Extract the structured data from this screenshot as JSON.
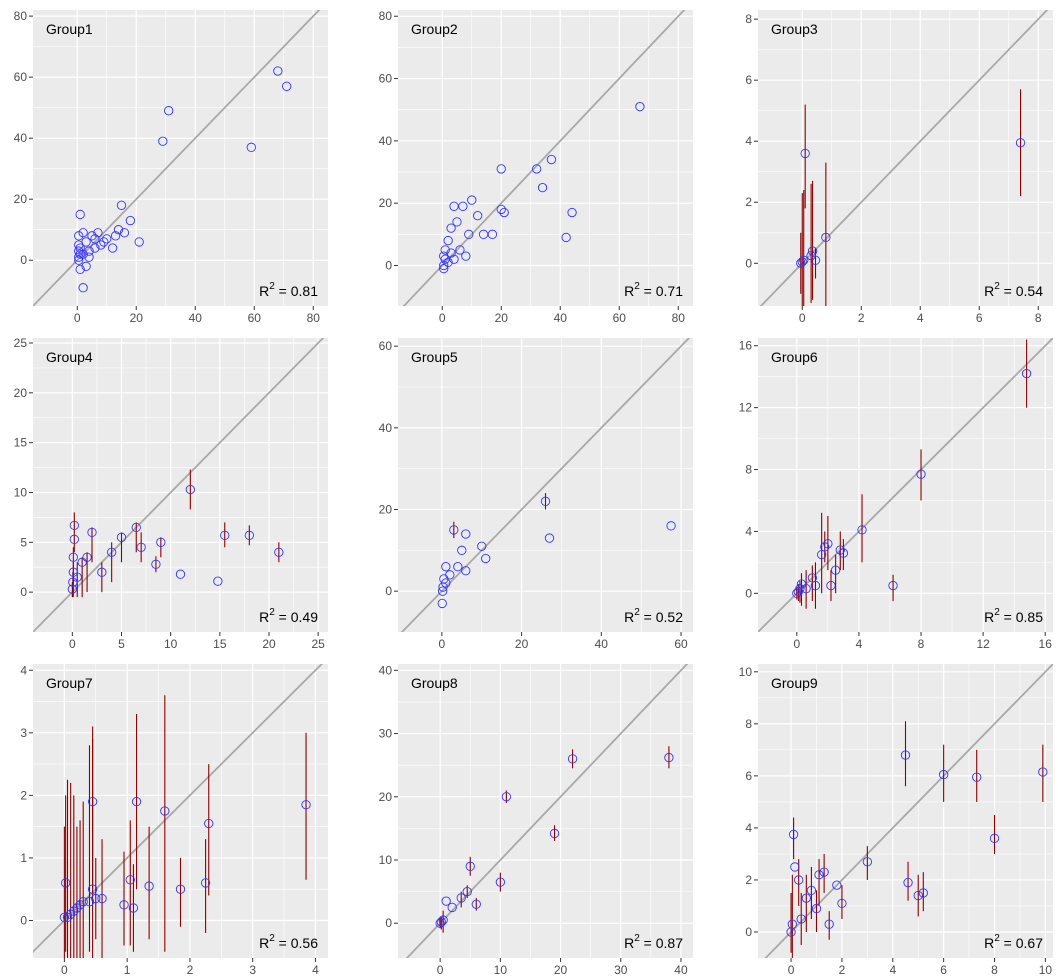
{
  "colors": {
    "panel_bg": "#ebebeb",
    "grid": "#ffffff",
    "diagonal": "#a8a8a8",
    "errorbar": "#8b0000",
    "point": "#3333ff",
    "tick_text": "#4d4d4d"
  },
  "chart_data": [
    {
      "type": "scatter",
      "title": "Group1",
      "r2_label": "= 0.81",
      "xlim": [
        -15,
        85
      ],
      "ylim": [
        -15,
        82
      ],
      "xticks": [
        0,
        20,
        40,
        60,
        80
      ],
      "yticks": [
        0,
        20,
        40,
        60,
        80
      ],
      "points": [
        {
          "x": 68,
          "y": 62
        },
        {
          "x": 71,
          "y": 57
        },
        {
          "x": 59,
          "y": 37
        },
        {
          "x": 31,
          "y": 49
        },
        {
          "x": 29,
          "y": 39
        },
        {
          "x": 21,
          "y": 6
        },
        {
          "x": 18,
          "y": 13
        },
        {
          "x": 15,
          "y": 18
        },
        {
          "x": 16,
          "y": 9
        },
        {
          "x": 14,
          "y": 10
        },
        {
          "x": 13,
          "y": 8
        },
        {
          "x": 12,
          "y": 4
        },
        {
          "x": 10,
          "y": 7
        },
        {
          "x": 9,
          "y": 6
        },
        {
          "x": 8,
          "y": 5
        },
        {
          "x": 7,
          "y": 9
        },
        {
          "x": 6,
          "y": 4
        },
        {
          "x": 5,
          "y": 8
        },
        {
          "x": 4,
          "y": 3
        },
        {
          "x": 3,
          "y": 6
        },
        {
          "x": 2,
          "y": 2
        },
        {
          "x": 1,
          "y": 15
        },
        {
          "x": 1,
          "y": -3
        },
        {
          "x": 2,
          "y": -9
        },
        {
          "x": 0.5,
          "y": 8
        },
        {
          "x": 0.5,
          "y": 5
        },
        {
          "x": 0.5,
          "y": 3
        },
        {
          "x": 0.5,
          "y": 1
        },
        {
          "x": 0.5,
          "y": 0
        },
        {
          "x": 3,
          "y": -2
        },
        {
          "x": 4,
          "y": 1
        },
        {
          "x": 6,
          "y": 7
        },
        {
          "x": 2,
          "y": 9
        },
        {
          "x": 1,
          "y": 4
        },
        {
          "x": 1,
          "y": 2
        }
      ]
    },
    {
      "type": "scatter",
      "title": "Group2",
      "r2_label": "= 0.71",
      "xlim": [
        -15,
        85
      ],
      "ylim": [
        -13,
        82
      ],
      "xticks": [
        0,
        20,
        40,
        60,
        80
      ],
      "yticks": [
        0,
        20,
        40,
        60,
        80
      ],
      "points": [
        {
          "x": 67,
          "y": 51
        },
        {
          "x": 37,
          "y": 34
        },
        {
          "x": 32,
          "y": 31
        },
        {
          "x": 34,
          "y": 25
        },
        {
          "x": 44,
          "y": 17
        },
        {
          "x": 42,
          "y": 9
        },
        {
          "x": 20,
          "y": 31
        },
        {
          "x": 20,
          "y": 18
        },
        {
          "x": 21,
          "y": 17
        },
        {
          "x": 17,
          "y": 10
        },
        {
          "x": 14,
          "y": 10
        },
        {
          "x": 12,
          "y": 16
        },
        {
          "x": 10,
          "y": 21
        },
        {
          "x": 9,
          "y": 10
        },
        {
          "x": 7,
          "y": 19
        },
        {
          "x": 4,
          "y": 19
        },
        {
          "x": 5,
          "y": 14
        },
        {
          "x": 3,
          "y": 12
        },
        {
          "x": 2,
          "y": 8
        },
        {
          "x": 6,
          "y": 5
        },
        {
          "x": 8,
          "y": 3
        },
        {
          "x": 1,
          "y": 5
        },
        {
          "x": 1,
          "y": 2
        },
        {
          "x": 0.5,
          "y": 0
        },
        {
          "x": 0.5,
          "y": 3
        },
        {
          "x": 2,
          "y": 1
        },
        {
          "x": 4,
          "y": 2
        },
        {
          "x": 3,
          "y": 4
        },
        {
          "x": 0.5,
          "y": -1
        }
      ]
    },
    {
      "type": "scatter",
      "title": "Group3",
      "r2_label": "= 0.54",
      "xlim": [
        -1.5,
        8.5
      ],
      "ylim": [
        -1.4,
        8.3
      ],
      "xticks": [
        0,
        2,
        4,
        6,
        8
      ],
      "yticks": [
        0,
        2,
        4,
        6,
        8
      ],
      "points": [
        {
          "x": 7.4,
          "y": 3.95,
          "lo": 2.2,
          "hi": 5.7
        },
        {
          "x": 0.1,
          "y": 3.6,
          "lo": 1.8,
          "hi": 5.2
        },
        {
          "x": 0.8,
          "y": 0.85,
          "lo": -1.4,
          "hi": 3.3
        },
        {
          "x": 0.35,
          "y": 0.4,
          "lo": -1.2,
          "hi": 2.7
        },
        {
          "x": 0.3,
          "y": 0.25,
          "lo": -1.3,
          "hi": 2.6
        },
        {
          "x": 0.45,
          "y": 0.1,
          "lo": -0.5,
          "hi": 0.5
        },
        {
          "x": 0.05,
          "y": 0.1,
          "lo": -1.4,
          "hi": 2.4
        },
        {
          "x": 0.0,
          "y": 0.05,
          "lo": -1.4,
          "hi": 2.3
        },
        {
          "x": -0.05,
          "y": 0.0,
          "lo": -1.0,
          "hi": 1.0
        }
      ]
    },
    {
      "type": "scatter",
      "title": "Group4",
      "r2_label": "= 0.49",
      "xlim": [
        -4,
        26
      ],
      "ylim": [
        -4,
        25.5
      ],
      "xticks": [
        0,
        5,
        10,
        15,
        20,
        25
      ],
      "yticks": [
        0,
        5,
        10,
        15,
        20,
        25
      ],
      "points": [
        {
          "x": 12,
          "y": 10.3,
          "lo": 8.3,
          "hi": 12.3
        },
        {
          "x": 21,
          "y": 4,
          "lo": 3,
          "hi": 5
        },
        {
          "x": 18,
          "y": 5.7,
          "lo": 4.7,
          "hi": 6.7
        },
        {
          "x": 15.5,
          "y": 5.7,
          "lo": 4.5,
          "hi": 7
        },
        {
          "x": 14.8,
          "y": 1.1
        },
        {
          "x": 11,
          "y": 1.8
        },
        {
          "x": 9,
          "y": 5,
          "lo": 3.5,
          "hi": 5.5
        },
        {
          "x": 8.5,
          "y": 2.8,
          "lo": 2,
          "hi": 3.6
        },
        {
          "x": 7,
          "y": 4.5,
          "lo": 3,
          "hi": 6
        },
        {
          "x": 6.5,
          "y": 6.5,
          "lo": 4,
          "hi": 7
        },
        {
          "x": 5,
          "y": 5.5,
          "lo": 3,
          "hi": 6
        },
        {
          "x": 4,
          "y": 4,
          "lo": 1,
          "hi": 5
        },
        {
          "x": 3,
          "y": 2,
          "lo": 0,
          "hi": 3
        },
        {
          "x": 2,
          "y": 6,
          "lo": 3,
          "hi": 6.5
        },
        {
          "x": 1.5,
          "y": 3.5,
          "lo": 0,
          "hi": 4
        },
        {
          "x": 1,
          "y": 3,
          "lo": -0.5,
          "hi": 3.5
        },
        {
          "x": 0.5,
          "y": 1.5,
          "lo": -0.5,
          "hi": 3
        },
        {
          "x": 0.2,
          "y": 6.7,
          "lo": 4,
          "hi": 8
        },
        {
          "x": 0.2,
          "y": 5.3
        },
        {
          "x": 0.1,
          "y": 3.5,
          "lo": 0.5,
          "hi": 4.5
        },
        {
          "x": 0.1,
          "y": 2,
          "lo": -0.5,
          "hi": 3
        },
        {
          "x": 0.05,
          "y": 1,
          "lo": -0.5,
          "hi": 2
        },
        {
          "x": 0,
          "y": 0.3,
          "lo": -0.5,
          "hi": 1
        }
      ]
    },
    {
      "type": "scatter",
      "title": "Group5",
      "r2_label": "= 0.52",
      "xlim": [
        -11,
        63
      ],
      "ylim": [
        -10,
        62
      ],
      "xticks": [
        0,
        20,
        40,
        60
      ],
      "yticks": [
        0,
        20,
        40,
        60
      ],
      "points": [
        {
          "x": 26,
          "y": 22,
          "lo": 20,
          "hi": 24
        },
        {
          "x": 27,
          "y": 13
        },
        {
          "x": 57.5,
          "y": 16
        },
        {
          "x": 10,
          "y": 11
        },
        {
          "x": 11,
          "y": 8
        },
        {
          "x": 3,
          "y": 15,
          "lo": 13,
          "hi": 17
        },
        {
          "x": 6,
          "y": 14
        },
        {
          "x": 5,
          "y": 10
        },
        {
          "x": 4,
          "y": 6
        },
        {
          "x": 6,
          "y": 5
        },
        {
          "x": 2,
          "y": 4
        },
        {
          "x": 1,
          "y": 6
        },
        {
          "x": 0.5,
          "y": 3
        },
        {
          "x": 0.2,
          "y": 0
        },
        {
          "x": 0.1,
          "y": -3
        },
        {
          "x": 0.3,
          "y": 1
        },
        {
          "x": 1,
          "y": 2
        }
      ]
    },
    {
      "type": "scatter",
      "title": "Group6",
      "r2_label": "= 0.85",
      "xlim": [
        -2.5,
        16.5
      ],
      "ylim": [
        -2.5,
        16.5
      ],
      "xticks": [
        0,
        4,
        8,
        12,
        16
      ],
      "yticks": [
        0,
        4,
        8,
        12,
        16
      ],
      "points": [
        {
          "x": 14.8,
          "y": 14.2,
          "lo": 12,
          "hi": 16.4
        },
        {
          "x": 8,
          "y": 7.7,
          "lo": 6,
          "hi": 9.3
        },
        {
          "x": 4.2,
          "y": 4.1,
          "lo": 2,
          "hi": 6.4
        },
        {
          "x": 6.2,
          "y": 0.5,
          "lo": -0.5,
          "hi": 1.2
        },
        {
          "x": 3,
          "y": 2.6,
          "lo": 1.5,
          "hi": 3.5
        },
        {
          "x": 2.8,
          "y": 2.8,
          "lo": 1.5,
          "hi": 4
        },
        {
          "x": 2.5,
          "y": 1.5,
          "lo": 0,
          "hi": 2.5
        },
        {
          "x": 2.2,
          "y": 0.5,
          "lo": -0.5,
          "hi": 1.5
        },
        {
          "x": 2,
          "y": 3.2,
          "lo": 1.5,
          "hi": 5
        },
        {
          "x": 1.8,
          "y": 3,
          "lo": 2,
          "hi": 4
        },
        {
          "x": 1.6,
          "y": 2.5,
          "lo": 0,
          "hi": 5.2
        },
        {
          "x": 1.2,
          "y": 0.5,
          "lo": -1,
          "hi": 2
        },
        {
          "x": 1,
          "y": 1,
          "lo": -0.5,
          "hi": 1.8
        },
        {
          "x": 0.6,
          "y": 0.3,
          "lo": -1,
          "hi": 1.5
        },
        {
          "x": 0.3,
          "y": 0.6,
          "lo": -0.8,
          "hi": 1.3
        },
        {
          "x": 0.2,
          "y": 0.3,
          "lo": -0.6,
          "hi": 0.8
        },
        {
          "x": 0.1,
          "y": 0.1,
          "lo": -0.5,
          "hi": 0.6
        },
        {
          "x": 0,
          "y": 0,
          "lo": -0.4,
          "hi": 0.4
        }
      ]
    },
    {
      "type": "scatter",
      "title": "Group7",
      "r2_label": "= 0.56",
      "xlim": [
        -0.5,
        4.2
      ],
      "ylim": [
        -0.6,
        4.1
      ],
      "xticks": [
        0,
        1,
        2,
        3,
        4
      ],
      "yticks": [
        0,
        1,
        2,
        3,
        4
      ],
      "points": [
        {
          "x": 3.85,
          "y": 1.85,
          "lo": 0.65,
          "hi": 3.0
        },
        {
          "x": 2.3,
          "y": 1.55,
          "lo": 0.4,
          "hi": 2.5
        },
        {
          "x": 2.25,
          "y": 0.6,
          "lo": -0.2,
          "hi": 1.3
        },
        {
          "x": 1.85,
          "y": 0.5,
          "lo": -0.1,
          "hi": 1.0
        },
        {
          "x": 1.6,
          "y": 1.75,
          "lo": -0.5,
          "hi": 3.6
        },
        {
          "x": 1.35,
          "y": 0.55,
          "lo": -0.3,
          "hi": 1.5
        },
        {
          "x": 1.15,
          "y": 1.9,
          "lo": 0.5,
          "hi": 3.3
        },
        {
          "x": 1.1,
          "y": 0.2,
          "lo": -0.5,
          "hi": 0.9
        },
        {
          "x": 1.05,
          "y": 0.65,
          "lo": -0.4,
          "hi": 1.6
        },
        {
          "x": 0.95,
          "y": 0.25,
          "lo": -0.4,
          "hi": 1.1
        },
        {
          "x": 0.6,
          "y": 0.35,
          "lo": -0.6,
          "hi": 1.3
        },
        {
          "x": 0.5,
          "y": 0.35,
          "lo": -0.3,
          "hi": 1.0
        },
        {
          "x": 0.45,
          "y": 0.5,
          "lo": -0.6,
          "hi": 2.9
        },
        {
          "x": 0.45,
          "y": 1.9,
          "lo": 0.5,
          "hi": 3.1
        },
        {
          "x": 0.4,
          "y": 0.3,
          "lo": -0.5,
          "hi": 2.8
        },
        {
          "x": 0.3,
          "y": 0.3,
          "lo": -0.6,
          "hi": 1.9
        },
        {
          "x": 0.25,
          "y": 0.25,
          "lo": -0.6,
          "hi": 1.6
        },
        {
          "x": 0.2,
          "y": 0.2,
          "lo": -0.6,
          "hi": 1.5
        },
        {
          "x": 0.15,
          "y": 0.15,
          "lo": -0.6,
          "hi": 2.0
        },
        {
          "x": 0.1,
          "y": 0.1,
          "lo": -0.6,
          "hi": 2.2
        },
        {
          "x": 0.05,
          "y": 0.05,
          "lo": -0.6,
          "hi": 2.25
        },
        {
          "x": 0.02,
          "y": 0.6,
          "lo": -0.5,
          "hi": 2.0
        },
        {
          "x": 0,
          "y": 0.05,
          "lo": -0.6,
          "hi": 1.5
        }
      ]
    },
    {
      "type": "scatter",
      "title": "Group8",
      "r2_label": "= 0.87",
      "xlim": [
        -7,
        42
      ],
      "ylim": [
        -5.5,
        41
      ],
      "xticks": [
        0,
        10,
        20,
        30,
        40
      ],
      "yticks": [
        0,
        10,
        20,
        30,
        40
      ],
      "points": [
        {
          "x": 38,
          "y": 26.2,
          "lo": 24.5,
          "hi": 28
        },
        {
          "x": 22,
          "y": 26,
          "lo": 24.5,
          "hi": 27.5
        },
        {
          "x": 19,
          "y": 14.2,
          "lo": 13,
          "hi": 15.5
        },
        {
          "x": 11,
          "y": 20,
          "lo": 19,
          "hi": 21
        },
        {
          "x": 10,
          "y": 6.5,
          "lo": 5,
          "hi": 8
        },
        {
          "x": 5,
          "y": 9,
          "lo": 7.5,
          "hi": 10.5
        },
        {
          "x": 6,
          "y": 3,
          "lo": 2,
          "hi": 4
        },
        {
          "x": 4.5,
          "y": 5,
          "lo": 4,
          "hi": 6
        },
        {
          "x": 3.5,
          "y": 4,
          "lo": 2.5,
          "hi": 5
        },
        {
          "x": 2,
          "y": 2.5
        },
        {
          "x": 1,
          "y": 3.5
        },
        {
          "x": 0.5,
          "y": 0.5,
          "lo": -1.5,
          "hi": 2
        },
        {
          "x": 0.2,
          "y": 0.2,
          "lo": -1,
          "hi": 1
        },
        {
          "x": 0,
          "y": 0,
          "lo": -0.8,
          "hi": 0.8
        }
      ]
    },
    {
      "type": "scatter",
      "title": "Group9",
      "r2_label": "= 0.67",
      "xlim": [
        -1.3,
        10.3
      ],
      "ylim": [
        -1,
        10.3
      ],
      "xticks": [
        0,
        2,
        4,
        6,
        8,
        10
      ],
      "yticks": [
        0,
        2,
        4,
        6,
        8,
        10
      ],
      "points": [
        {
          "x": 9.9,
          "y": 6.15,
          "lo": 5,
          "hi": 7.2
        },
        {
          "x": 7.3,
          "y": 5.95,
          "lo": 5,
          "hi": 7
        },
        {
          "x": 6,
          "y": 6.05,
          "lo": 5,
          "hi": 7.2
        },
        {
          "x": 4.5,
          "y": 6.8,
          "lo": 5.6,
          "hi": 8.1
        },
        {
          "x": 8,
          "y": 3.6,
          "lo": 3,
          "hi": 4.5
        },
        {
          "x": 3,
          "y": 2.7,
          "lo": 2,
          "hi": 3.3
        },
        {
          "x": 4.6,
          "y": 1.9,
          "lo": 1.2,
          "hi": 2.7
        },
        {
          "x": 5,
          "y": 1.4,
          "lo": 0.6,
          "hi": 2.2
        },
        {
          "x": 5.2,
          "y": 1.5,
          "lo": 0.8,
          "hi": 2.3
        },
        {
          "x": 2,
          "y": 1.1,
          "lo": 0.5,
          "hi": 1.8
        },
        {
          "x": 1.8,
          "y": 1.8
        },
        {
          "x": 1.5,
          "y": 0.3,
          "lo": -0.3,
          "hi": 0.8
        },
        {
          "x": 1.3,
          "y": 2.3,
          "lo": 1.5,
          "hi": 3
        },
        {
          "x": 1.1,
          "y": 2.2,
          "lo": 1,
          "hi": 2.8
        },
        {
          "x": 1,
          "y": 0.9,
          "lo": 0,
          "hi": 1.6
        },
        {
          "x": 0.8,
          "y": 1.6,
          "lo": 0.5,
          "hi": 2.5
        },
        {
          "x": 0.6,
          "y": 1.3,
          "lo": 0,
          "hi": 2.2
        },
        {
          "x": 0.4,
          "y": 0.5,
          "lo": -0.5,
          "hi": 1.5
        },
        {
          "x": 0.3,
          "y": 2.0,
          "lo": 1,
          "hi": 2.8
        },
        {
          "x": 0.1,
          "y": 3.75,
          "lo": 2.8,
          "hi": 4.4
        },
        {
          "x": 0.15,
          "y": 2.5
        },
        {
          "x": 0.05,
          "y": 0.3,
          "lo": -1,
          "hi": 2.2
        },
        {
          "x": 0,
          "y": 0,
          "lo": -0.8,
          "hi": 1.5
        }
      ]
    }
  ]
}
